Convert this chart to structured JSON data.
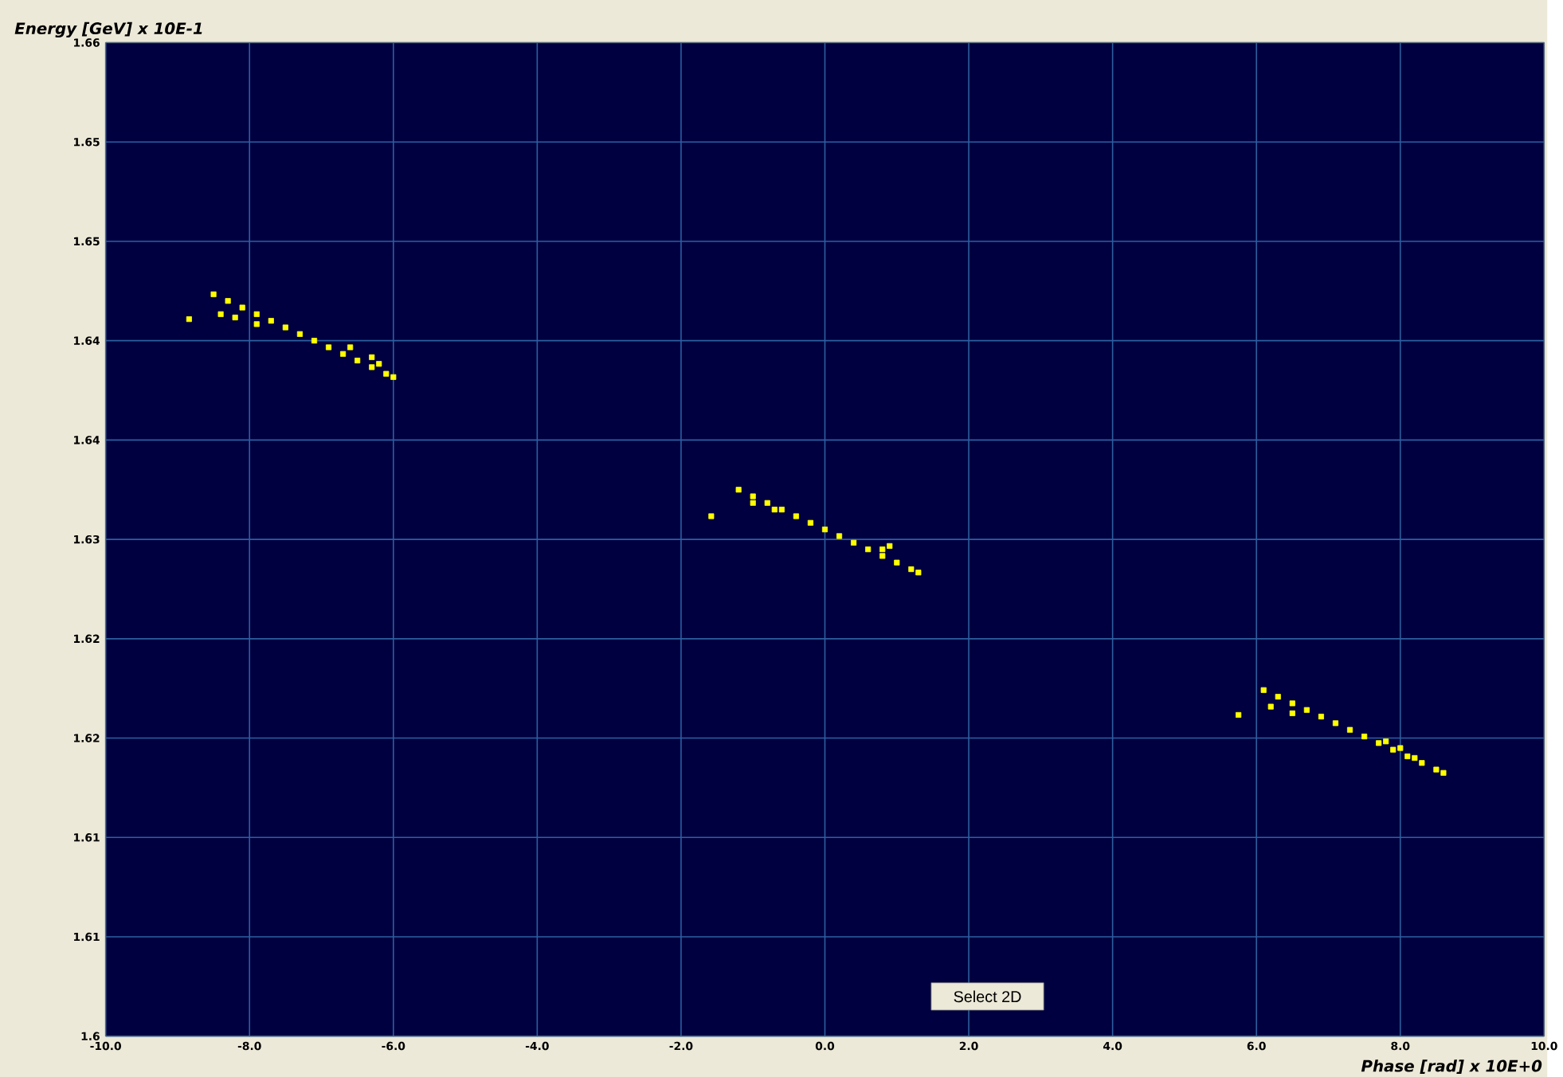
{
  "chart_data": {
    "type": "scatter",
    "xlabel": "Phase [rad] x 10E+0",
    "ylabel": "Energy [GeV] x 10E-1",
    "annotations": [
      "Select 2D"
    ],
    "series": [
      {
        "color": "#ffff00",
        "x": [
          -8.5,
          -8.3,
          -8.1,
          -7.9,
          -7.7,
          -7.5,
          -7.3,
          -7.1,
          -6.9,
          -6.7,
          -6.5,
          -6.3,
          -6.1,
          -6.0,
          -8.4,
          -8.2,
          -7.9,
          -6.6,
          -6.3,
          -6.2,
          -8.84,
          -1.2,
          -1.0,
          -0.8,
          -0.6,
          -0.4,
          -0.2,
          0.0,
          0.2,
          0.4,
          0.6,
          0.8,
          1.0,
          1.2,
          1.3,
          -1.0,
          -0.7,
          0.8,
          0.9,
          -1.58,
          6.1,
          6.3,
          6.5,
          6.7,
          6.9,
          7.1,
          7.3,
          7.5,
          7.7,
          7.9,
          8.1,
          8.3,
          8.5,
          8.6,
          6.2,
          6.5,
          7.8,
          8.0,
          8.2,
          5.75
        ],
        "values": [
          1.6448,
          1.6444,
          1.644,
          1.6436,
          1.6432,
          1.6428,
          1.6424,
          1.642,
          1.6416,
          1.6412,
          1.6408,
          1.6404,
          1.64,
          1.6398,
          1.6436,
          1.6434,
          1.643,
          1.6416,
          1.641,
          1.6406,
          1.6433,
          1.633,
          1.6326,
          1.6322,
          1.6318,
          1.6314,
          1.631,
          1.6306,
          1.6302,
          1.6298,
          1.6294,
          1.629,
          1.6286,
          1.6282,
          1.628,
          1.6322,
          1.6318,
          1.6294,
          1.6296,
          1.6314,
          1.6209,
          1.6205,
          1.6201,
          1.6197,
          1.6193,
          1.6189,
          1.6185,
          1.6181,
          1.6177,
          1.6173,
          1.6169,
          1.6165,
          1.6161,
          1.6159,
          1.6199,
          1.6195,
          1.6178,
          1.6174,
          1.6168,
          1.6194
        ]
      }
    ],
    "marker": "square",
    "grid": true,
    "xlim": [
      -10,
      10
    ],
    "ylim": [
      1.6,
      1.66
    ],
    "xticks": [
      {
        "value": -10,
        "label": "-10.0"
      },
      {
        "value": -8,
        "label": "-8.0"
      },
      {
        "value": -6,
        "label": "-6.0"
      },
      {
        "value": -4,
        "label": "-4.0"
      },
      {
        "value": -2,
        "label": "-2.0"
      },
      {
        "value": 0,
        "label": "0.0"
      },
      {
        "value": 2,
        "label": "2.0"
      },
      {
        "value": 4,
        "label": "4.0"
      },
      {
        "value": 6,
        "label": "6.0"
      },
      {
        "value": 8,
        "label": "8.0"
      },
      {
        "value": 10,
        "label": "10.0"
      }
    ],
    "yticks": [
      {
        "value": 1.6,
        "label": "1.6"
      },
      {
        "value": 1.606,
        "label": "1.61"
      },
      {
        "value": 1.612,
        "label": "1.61"
      },
      {
        "value": 1.618,
        "label": "1.62"
      },
      {
        "value": 1.624,
        "label": "1.62"
      },
      {
        "value": 1.63,
        "label": "1.63"
      },
      {
        "value": 1.636,
        "label": "1.64"
      },
      {
        "value": 1.642,
        "label": "1.64"
      },
      {
        "value": 1.648,
        "label": "1.65"
      },
      {
        "value": 1.654,
        "label": "1.65"
      },
      {
        "value": 1.66,
        "label": "1.66"
      }
    ]
  }
}
